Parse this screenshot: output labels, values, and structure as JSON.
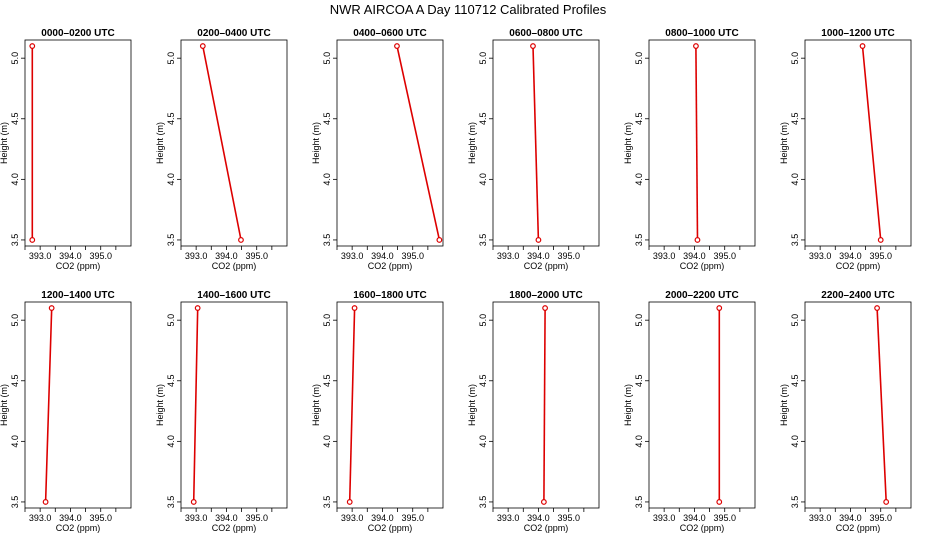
{
  "figure": {
    "title": "NWR AIRCOA A  Day 110712  Calibrated Profiles"
  },
  "chart_data": [
    {
      "type": "line",
      "title": "0000–0200 UTC",
      "xlabel": "CO2 (ppm)",
      "ylabel": "Height (m)",
      "xlim": [
        392.5,
        396.0
      ],
      "ylim": [
        3.45,
        5.15
      ],
      "xticks": [
        "393.0",
        "394.0",
        "395.0"
      ],
      "yticks": [
        "3.5",
        "4.0",
        "4.5",
        "5.0"
      ],
      "series": [
        {
          "color": "#dd0000",
          "x": [
            392.74,
            392.74
          ],
          "y": [
            3.5,
            5.1
          ]
        }
      ]
    },
    {
      "type": "line",
      "title": "0200–0400 UTC",
      "xlabel": "CO2 (ppm)",
      "ylabel": "Height (m)",
      "xlim": [
        392.5,
        396.0
      ],
      "ylim": [
        3.45,
        5.15
      ],
      "xticks": [
        "393.0",
        "394.0",
        "395.0"
      ],
      "yticks": [
        "3.5",
        "4.0",
        "4.5",
        "5.0"
      ],
      "series": [
        {
          "color": "#dd0000",
          "x": [
            394.48,
            393.22
          ],
          "y": [
            3.5,
            5.1
          ]
        }
      ]
    },
    {
      "type": "line",
      "title": "0400–0600 UTC",
      "xlabel": "CO2 (ppm)",
      "ylabel": "Height (m)",
      "xlim": [
        392.5,
        396.0
      ],
      "ylim": [
        3.45,
        5.15
      ],
      "xticks": [
        "393.0",
        "394.0",
        "395.0"
      ],
      "yticks": [
        "3.5",
        "4.0",
        "4.5",
        "5.0"
      ],
      "series": [
        {
          "color": "#dd0000",
          "x": [
            395.88,
            394.48
          ],
          "y": [
            3.5,
            5.1
          ]
        }
      ]
    },
    {
      "type": "line",
      "title": "0600–0800 UTC",
      "xlabel": "CO2 (ppm)",
      "ylabel": "Height (m)",
      "xlim": [
        392.5,
        396.0
      ],
      "ylim": [
        3.45,
        5.15
      ],
      "xticks": [
        "393.0",
        "394.0",
        "395.0"
      ],
      "yticks": [
        "3.5",
        "4.0",
        "4.5",
        "5.0"
      ],
      "series": [
        {
          "color": "#dd0000",
          "x": [
            394.0,
            393.82
          ],
          "y": [
            3.5,
            5.1
          ]
        }
      ]
    },
    {
      "type": "line",
      "title": "0800–1000 UTC",
      "xlabel": "CO2 (ppm)",
      "ylabel": "Height (m)",
      "xlim": [
        392.5,
        396.0
      ],
      "ylim": [
        3.45,
        5.15
      ],
      "xticks": [
        "393.0",
        "394.0",
        "395.0"
      ],
      "yticks": [
        "3.5",
        "4.0",
        "4.5",
        "5.0"
      ],
      "series": [
        {
          "color": "#dd0000",
          "x": [
            394.1,
            394.05
          ],
          "y": [
            3.5,
            5.1
          ]
        }
      ]
    },
    {
      "type": "line",
      "title": "1000–1200 UTC",
      "xlabel": "CO2 (ppm)",
      "ylabel": "Height (m)",
      "xlim": [
        392.5,
        396.0
      ],
      "ylim": [
        3.45,
        5.15
      ],
      "xticks": [
        "393.0",
        "394.0",
        "395.0"
      ],
      "yticks": [
        "3.5",
        "4.0",
        "4.5",
        "5.0"
      ],
      "series": [
        {
          "color": "#dd0000",
          "x": [
            395.0,
            394.4
          ],
          "y": [
            3.5,
            5.1
          ]
        }
      ]
    },
    {
      "type": "line",
      "title": "1200–1400 UTC",
      "xlabel": "CO2 (ppm)",
      "ylabel": "Height (m)",
      "xlim": [
        392.5,
        396.0
      ],
      "ylim": [
        3.45,
        5.15
      ],
      "xticks": [
        "393.0",
        "394.0",
        "395.0"
      ],
      "yticks": [
        "3.5",
        "4.0",
        "4.5",
        "5.0"
      ],
      "series": [
        {
          "color": "#dd0000",
          "x": [
            393.18,
            393.38
          ],
          "y": [
            3.5,
            5.1
          ]
        }
      ]
    },
    {
      "type": "line",
      "title": "1400–1600 UTC",
      "xlabel": "CO2 (ppm)",
      "ylabel": "Height (m)",
      "xlim": [
        392.5,
        396.0
      ],
      "ylim": [
        3.45,
        5.15
      ],
      "xticks": [
        "393.0",
        "394.0",
        "395.0"
      ],
      "yticks": [
        "3.5",
        "4.0",
        "4.5",
        "5.0"
      ],
      "series": [
        {
          "color": "#dd0000",
          "x": [
            392.92,
            393.05
          ],
          "y": [
            3.5,
            5.1
          ]
        }
      ]
    },
    {
      "type": "line",
      "title": "1600–1800 UTC",
      "xlabel": "CO2 (ppm)",
      "ylabel": "Height (m)",
      "xlim": [
        392.5,
        396.0
      ],
      "ylim": [
        3.45,
        5.15
      ],
      "xticks": [
        "393.0",
        "394.0",
        "395.0"
      ],
      "yticks": [
        "3.5",
        "4.0",
        "4.5",
        "5.0"
      ],
      "series": [
        {
          "color": "#dd0000",
          "x": [
            392.92,
            393.08
          ],
          "y": [
            3.5,
            5.1
          ]
        }
      ]
    },
    {
      "type": "line",
      "title": "1800–2000 UTC",
      "xlabel": "CO2 (ppm)",
      "ylabel": "Height (m)",
      "xlim": [
        392.5,
        396.0
      ],
      "ylim": [
        3.45,
        5.15
      ],
      "xticks": [
        "393.0",
        "394.0",
        "395.0"
      ],
      "yticks": [
        "3.5",
        "4.0",
        "4.5",
        "5.0"
      ],
      "series": [
        {
          "color": "#dd0000",
          "x": [
            394.18,
            394.22
          ],
          "y": [
            3.5,
            5.1
          ]
        }
      ]
    },
    {
      "type": "line",
      "title": "2000–2200 UTC",
      "xlabel": "CO2 (ppm)",
      "ylabel": "Height (m)",
      "xlim": [
        392.5,
        396.0
      ],
      "ylim": [
        3.45,
        5.15
      ],
      "xticks": [
        "393.0",
        "394.0",
        "395.0"
      ],
      "yticks": [
        "3.5",
        "4.0",
        "4.5",
        "5.0"
      ],
      "series": [
        {
          "color": "#dd0000",
          "x": [
            394.82,
            394.82
          ],
          "y": [
            3.5,
            5.1
          ]
        }
      ]
    },
    {
      "type": "line",
      "title": "2200–2400 UTC",
      "xlabel": "CO2 (ppm)",
      "ylabel": "Height (m)",
      "xlim": [
        392.5,
        396.0
      ],
      "ylim": [
        3.45,
        5.15
      ],
      "xticks": [
        "393.0",
        "394.0",
        "395.0"
      ],
      "yticks": [
        "3.5",
        "4.0",
        "4.5",
        "5.0"
      ],
      "series": [
        {
          "color": "#dd0000",
          "x": [
            395.18,
            394.88
          ],
          "y": [
            3.5,
            5.1
          ]
        }
      ]
    }
  ]
}
